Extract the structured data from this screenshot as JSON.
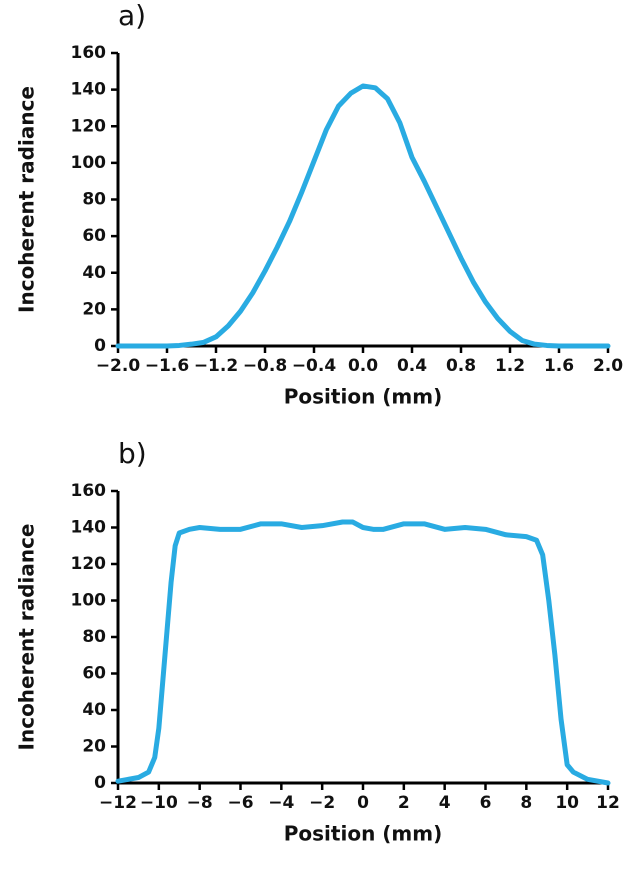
{
  "chart_data": [
    {
      "type": "line",
      "title": "a)",
      "x_label": "Position (mm)",
      "y_label": "Incoherent radiance",
      "xlim": [
        -2.0,
        2.0
      ],
      "ylim": [
        0,
        160
      ],
      "xticks": [
        {
          "value": -2.0,
          "label": "−2.0"
        },
        {
          "value": -1.6,
          "label": "−1.6"
        },
        {
          "value": -1.2,
          "label": "−1.2"
        },
        {
          "value": -0.8,
          "label": "−0.8"
        },
        {
          "value": -0.4,
          "label": "−0.4"
        },
        {
          "value": 0,
          "label": "0.0"
        },
        0.4,
        0.8,
        1.2,
        1.6,
        {
          "value": 2.0,
          "label": "2.0"
        }
      ],
      "yticks": [
        0,
        20,
        40,
        60,
        80,
        100,
        120,
        140,
        160
      ],
      "x": [
        -2.0,
        -1.6,
        -1.5,
        -1.4,
        -1.3,
        -1.2,
        -1.1,
        -1.0,
        -0.9,
        -0.8,
        -0.7,
        -0.6,
        -0.5,
        -0.4,
        -0.3,
        -0.2,
        -0.1,
        0,
        0.1,
        0.2,
        0.3,
        0.4,
        0.5,
        0.6,
        0.7,
        0.8,
        0.9,
        1.0,
        1.1,
        1.2,
        1.3,
        1.4,
        1.5,
        1.6,
        2.0
      ],
      "series": [
        {
          "color": "#29abe2",
          "values": [
            0,
            0,
            0.3,
            1,
            2,
            5,
            11,
            19,
            29,
            41,
            54,
            68,
            84,
            101,
            118,
            131,
            138,
            142,
            141,
            135,
            122,
            103,
            90,
            76,
            62,
            48,
            35,
            24,
            15,
            8,
            3,
            1,
            0.3,
            0,
            0
          ]
        }
      ]
    },
    {
      "type": "line",
      "title": "b)",
      "x_label": "Position (mm)",
      "y_label": "Incoherent radiance",
      "xlim": [
        -12,
        12
      ],
      "ylim": [
        0,
        160
      ],
      "xticks": [
        {
          "value": -12,
          "label": "−12"
        },
        {
          "value": -10,
          "label": "−10"
        },
        {
          "value": -8,
          "label": "−8"
        },
        {
          "value": -6,
          "label": "−6"
        },
        {
          "value": -4,
          "label": "−4"
        },
        {
          "value": -2,
          "label": "−2"
        },
        0,
        2,
        4,
        6,
        8,
        10,
        12
      ],
      "yticks": [
        0,
        20,
        40,
        60,
        80,
        100,
        120,
        140,
        160
      ],
      "x": [
        -12,
        -11,
        -10.5,
        -10.2,
        -10,
        -9.7,
        -9.4,
        -9.2,
        -9,
        -8.5,
        -8,
        -7,
        -6,
        -5,
        -4,
        -3,
        -2,
        -1,
        -0.5,
        0,
        0.5,
        1,
        2,
        3,
        4,
        5,
        6,
        7,
        8,
        8.5,
        8.8,
        9.1,
        9.4,
        9.7,
        10,
        10.3,
        11,
        12
      ],
      "series": [
        {
          "color": "#29abe2",
          "values": [
            1,
            3,
            6,
            14,
            30,
            70,
            110,
            130,
            137,
            139,
            140,
            139,
            139,
            142,
            142,
            140,
            141,
            143,
            143,
            140,
            139,
            139,
            142,
            142,
            139,
            140,
            139,
            136,
            135,
            133,
            125,
            100,
            70,
            35,
            10,
            6,
            2,
            0
          ]
        }
      ]
    }
  ]
}
